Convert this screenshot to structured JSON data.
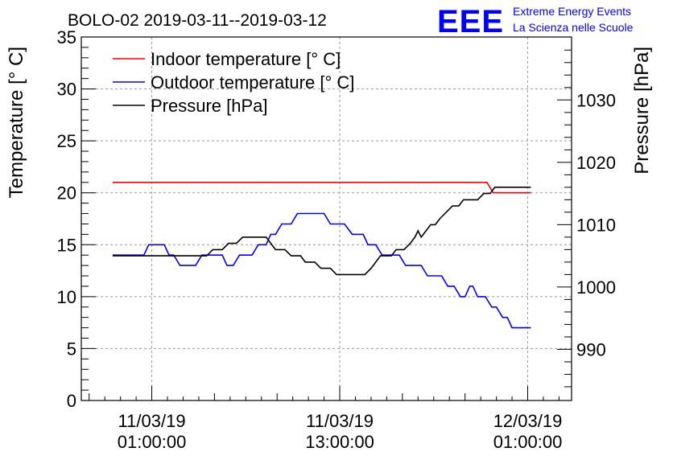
{
  "chart_data": {
    "type": "line",
    "title": "BOLO-02 2019-03-11--2019-03-12",
    "logo": {
      "mark": "EEE",
      "line1": "Extreme Energy Events",
      "line2": "La Scienza nelle Scuole",
      "color": "#0000ff"
    },
    "ylabel_left": "Temperature [° C]",
    "ylabel_right": "Pressure [hPa]",
    "ylim_left": [
      0,
      35
    ],
    "ylim_right": [
      981.8,
      1040.1
    ],
    "yticks_left": [
      "0",
      "5",
      "10",
      "15",
      "20",
      "25",
      "30",
      "35"
    ],
    "yticks_right": [
      "990",
      "1000",
      "1010",
      "1020",
      "1030"
    ],
    "xticks": [
      {
        "line1": "11/03/19",
        "line2": "01:00:00",
        "t": 1.0
      },
      {
        "line1": "11/03/19",
        "line2": "13:00:00",
        "t": 13.0
      },
      {
        "line1": "12/03/19",
        "line2": "01:00:00",
        "t": 25.0
      }
    ],
    "xlim": [
      -3.5,
      27.8
    ],
    "x_unit": "hours after 2019-03-11 00:00",
    "grid": true,
    "legend_position": "top-left",
    "series": [
      {
        "name": "Indoor temperature [° C]",
        "axis": "left",
        "color": "#ff0000",
        "points": [
          [
            -1.5,
            21
          ],
          [
            22.4,
            21
          ],
          [
            22.8,
            20
          ],
          [
            25.2,
            20
          ]
        ]
      },
      {
        "name": "Outdoor temperature [° C]",
        "axis": "left",
        "color": "#0000ff",
        "points": [
          [
            -1.5,
            14
          ],
          [
            0.5,
            14
          ],
          [
            0.8,
            15
          ],
          [
            1.8,
            15
          ],
          [
            2.1,
            14
          ],
          [
            2.4,
            14
          ],
          [
            2.8,
            13
          ],
          [
            3.8,
            13
          ],
          [
            4.2,
            14
          ],
          [
            5.5,
            14
          ],
          [
            5.8,
            13
          ],
          [
            6.2,
            13
          ],
          [
            6.6,
            14
          ],
          [
            7.4,
            14
          ],
          [
            7.8,
            15
          ],
          [
            8.3,
            15
          ],
          [
            8.6,
            16
          ],
          [
            8.9,
            16
          ],
          [
            9.3,
            17
          ],
          [
            9.9,
            17
          ],
          [
            10.3,
            18
          ],
          [
            12.0,
            18
          ],
          [
            12.4,
            17
          ],
          [
            13.3,
            17
          ],
          [
            13.8,
            16
          ],
          [
            14.5,
            16
          ],
          [
            14.8,
            15
          ],
          [
            15.3,
            15
          ],
          [
            15.7,
            14
          ],
          [
            16.8,
            14
          ],
          [
            17.2,
            13
          ],
          [
            18.2,
            13
          ],
          [
            18.6,
            12
          ],
          [
            19.5,
            12
          ],
          [
            19.9,
            11
          ],
          [
            20.3,
            11
          ],
          [
            20.7,
            10
          ],
          [
            21.0,
            10
          ],
          [
            21.3,
            11
          ],
          [
            21.5,
            11
          ],
          [
            21.8,
            10
          ],
          [
            22.3,
            10
          ],
          [
            22.7,
            9
          ],
          [
            23.0,
            9
          ],
          [
            23.4,
            8
          ],
          [
            23.7,
            8
          ],
          [
            24.0,
            7
          ],
          [
            25.2,
            7
          ]
        ]
      },
      {
        "name": "Pressure [hPa]",
        "axis": "right",
        "color": "#000000",
        "points": [
          [
            -1.5,
            1005
          ],
          [
            4.5,
            1005
          ],
          [
            4.9,
            1006
          ],
          [
            5.5,
            1006
          ],
          [
            5.9,
            1007
          ],
          [
            6.4,
            1007
          ],
          [
            6.8,
            1008
          ],
          [
            8.3,
            1008
          ],
          [
            8.6,
            1007
          ],
          [
            8.9,
            1006
          ],
          [
            9.5,
            1006
          ],
          [
            9.9,
            1005
          ],
          [
            10.5,
            1005
          ],
          [
            10.8,
            1004
          ],
          [
            11.4,
            1004
          ],
          [
            11.8,
            1003
          ],
          [
            12.4,
            1003
          ],
          [
            12.8,
            1002
          ],
          [
            14.6,
            1002
          ],
          [
            15.0,
            1003
          ],
          [
            15.3,
            1004
          ],
          [
            15.6,
            1005
          ],
          [
            16.3,
            1005
          ],
          [
            16.6,
            1006
          ],
          [
            17.1,
            1006
          ],
          [
            17.5,
            1007
          ],
          [
            17.8,
            1008
          ],
          [
            18.0,
            1009
          ],
          [
            18.2,
            1008
          ],
          [
            18.5,
            1009
          ],
          [
            18.8,
            1010
          ],
          [
            19.1,
            1010
          ],
          [
            19.4,
            1011
          ],
          [
            19.8,
            1012
          ],
          [
            20.2,
            1013
          ],
          [
            20.6,
            1013
          ],
          [
            20.9,
            1014
          ],
          [
            21.8,
            1014
          ],
          [
            22.2,
            1015
          ],
          [
            22.6,
            1015
          ],
          [
            22.9,
            1016
          ],
          [
            25.2,
            1016
          ]
        ]
      }
    ]
  }
}
